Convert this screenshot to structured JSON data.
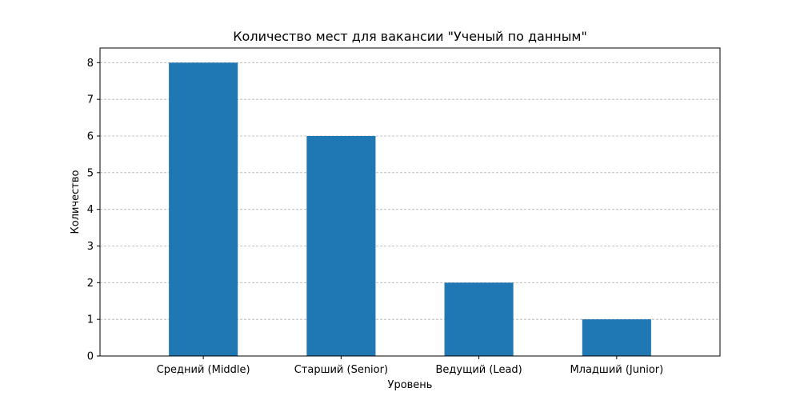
{
  "chart_data": {
    "type": "bar",
    "title": "Количество мест для вакансии \"Ученый по данным\"",
    "xlabel": "Уровень",
    "ylabel": "Количество",
    "categories": [
      "Средний (Middle)",
      "Старший (Senior)",
      "Ведущий (Lead)",
      "Младший (Junior)"
    ],
    "values": [
      8,
      6,
      2,
      1
    ],
    "ylim": [
      0,
      8.4
    ],
    "yticks": [
      0,
      1,
      2,
      3,
      4,
      5,
      6,
      7,
      8
    ],
    "grid": true,
    "bar_color": "#1f77b4"
  }
}
